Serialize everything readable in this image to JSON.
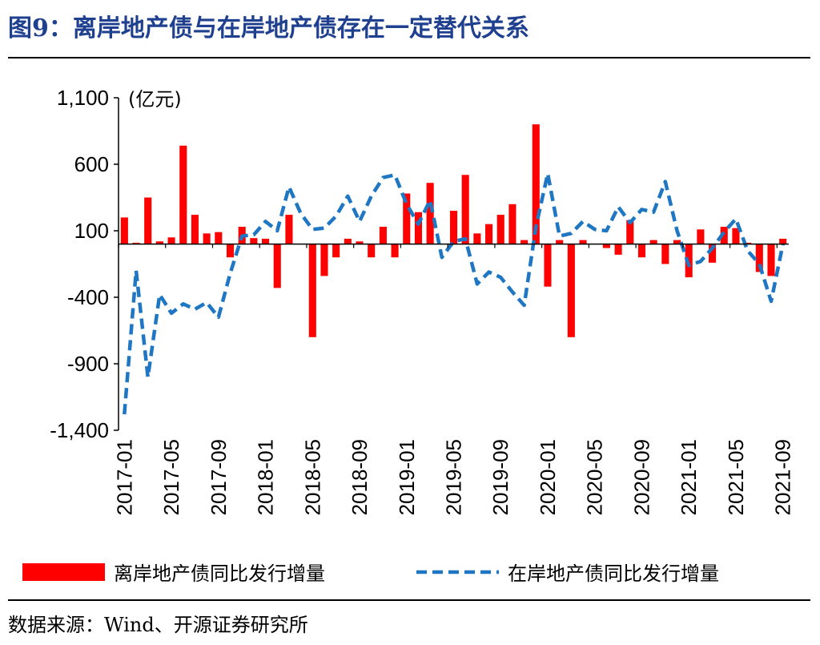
{
  "header": {
    "title": "图9：离岸地产债与在岸地产债存在一定替代关系"
  },
  "footer": {
    "source": "数据来源：Wind、开源证券研究所"
  },
  "colors": {
    "title": "#1f3f8f",
    "bar": "#ff0000",
    "line": "#1f77c4"
  },
  "chart_data": {
    "type": "bar",
    "unit": "(亿元)",
    "y_ticks": [
      1100,
      600,
      100,
      -400,
      -900,
      -1400
    ],
    "y_tick_labels": [
      "1,100",
      "600",
      "100",
      "-400",
      "-900",
      "-1,400"
    ],
    "ylim": [
      -1400,
      1100
    ],
    "legend_position": "bottom",
    "grid": false,
    "x_tick_labels": [
      "2017-01",
      "2017-05",
      "2017-09",
      "2018-01",
      "2018-05",
      "2018-09",
      "2019-01",
      "2019-05",
      "2019-09",
      "2020-01",
      "2020-05",
      "2020-09",
      "2021-01",
      "2021-05",
      "2021-09"
    ],
    "categories": [
      "2017-01",
      "2017-02",
      "2017-03",
      "2017-04",
      "2017-05",
      "2017-06",
      "2017-07",
      "2017-08",
      "2017-09",
      "2017-10",
      "2017-11",
      "2017-12",
      "2018-01",
      "2018-02",
      "2018-03",
      "2018-04",
      "2018-05",
      "2018-06",
      "2018-07",
      "2018-08",
      "2018-09",
      "2018-10",
      "2018-11",
      "2018-12",
      "2019-01",
      "2019-02",
      "2019-03",
      "2019-04",
      "2019-05",
      "2019-06",
      "2019-07",
      "2019-08",
      "2019-09",
      "2019-10",
      "2019-11",
      "2019-12",
      "2020-01",
      "2020-02",
      "2020-03",
      "2020-04",
      "2020-05",
      "2020-06",
      "2020-07",
      "2020-08",
      "2020-09",
      "2020-10",
      "2020-11",
      "2020-12",
      "2021-01",
      "2021-02",
      "2021-03",
      "2021-04",
      "2021-05",
      "2021-06",
      "2021-07",
      "2021-08",
      "2021-09"
    ],
    "series": [
      {
        "name": "离岸地产债同比发行增量",
        "type": "bar",
        "values": [
          200,
          10,
          350,
          20,
          50,
          740,
          220,
          80,
          90,
          -100,
          130,
          45,
          40,
          -330,
          220,
          0,
          -700,
          -240,
          -100,
          40,
          20,
          -100,
          130,
          -100,
          380,
          240,
          460,
          0,
          250,
          520,
          80,
          150,
          220,
          300,
          30,
          900,
          -320,
          30,
          -700,
          30,
          0,
          -30,
          -80,
          180,
          -100,
          30,
          -150,
          30,
          -250,
          110,
          -140,
          130,
          120,
          10,
          -210,
          -240,
          40
        ]
      },
      {
        "name": "在岸地产债同比发行增量",
        "type": "line",
        "values": [
          -1280,
          -200,
          -1000,
          -380,
          -520,
          -450,
          -490,
          -440,
          -550,
          -220,
          60,
          70,
          170,
          100,
          430,
          230,
          110,
          120,
          210,
          360,
          170,
          360,
          500,
          520,
          300,
          150,
          330,
          -100,
          20,
          40,
          -300,
          -210,
          -250,
          -360,
          -460,
          130,
          530,
          60,
          80,
          170,
          110,
          100,
          280,
          160,
          260,
          240,
          470,
          100,
          -160,
          -130,
          -30,
          90,
          190,
          -50,
          -150,
          -430,
          0
        ]
      }
    ]
  }
}
